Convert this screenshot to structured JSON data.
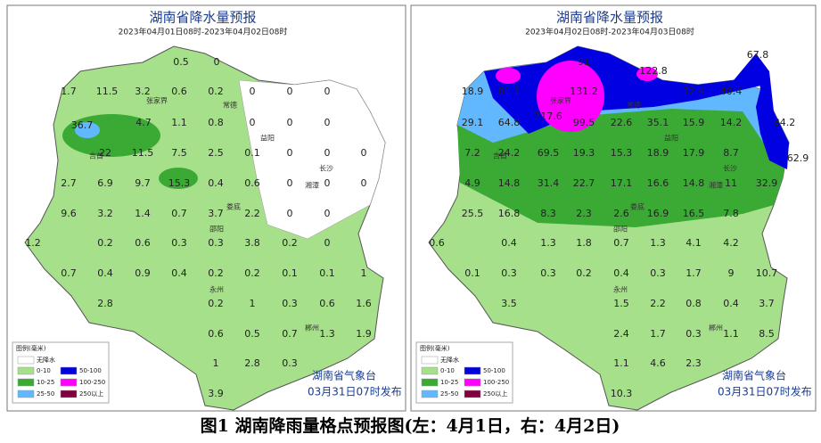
{
  "maps": [
    {
      "title": "湖南省降水量预报",
      "subtitle": "2023年04月01日08时-2023年04月02日08时",
      "legend_title": "图例(毫米)",
      "legend": [
        {
          "label": "无降水",
          "color": "#ffffff"
        },
        {
          "label": "0-10",
          "color": "#a6e08a"
        },
        {
          "label": "10-25",
          "color": "#3aaa35"
        },
        {
          "label": "25-50",
          "color": "#61b8ff"
        },
        {
          "label": "50-100",
          "color": "#0000e0"
        },
        {
          "label": "100-250",
          "color": "#ff00ff"
        },
        {
          "label": "250以上",
          "color": "#800040"
        }
      ],
      "issuer": "湖南省气象台",
      "issued": "03月31日07时发布",
      "cities": [
        "张家界",
        "常德",
        "益阳",
        "吉首",
        "长沙",
        "湘潭",
        "娄底",
        "邵阳",
        "永州",
        "郴州"
      ],
      "values": [
        "0.5",
        "0",
        "1.7",
        "11.5",
        "3.2",
        "0.6",
        "0.2",
        "0",
        "0",
        "0",
        "36.7",
        "4.7",
        "1.1",
        "0.8",
        "0",
        "0",
        "0",
        "22",
        "11.5",
        "7.5",
        "2.5",
        "0.1",
        "0",
        "0",
        "0",
        "2.7",
        "6.9",
        "9.7",
        "15.3",
        "0.4",
        "0.6",
        "0",
        "0",
        "0",
        "9.6",
        "3.2",
        "1.4",
        "0.7",
        "3.7",
        "2.2",
        "0",
        "0",
        "1.2",
        "0.2",
        "0.6",
        "0.3",
        "0.3",
        "3.8",
        "0.2",
        "0",
        "0.7",
        "0.4",
        "0.9",
        "0.4",
        "0.2",
        "0.2",
        "0.1",
        "0.1",
        "1",
        "2.8",
        "0.2",
        "1",
        "0.3",
        "0.6",
        "1.6",
        "0.6",
        "0.5",
        "0.7",
        "1.3",
        "1.9",
        "1",
        "2.8",
        "0.3",
        "3.9"
      ]
    },
    {
      "title": "湖南省降水量预报",
      "subtitle": "2023年04月02日08时-2023年04月03日08时",
      "legend_title": "图例(毫米)",
      "legend": [
        {
          "label": "无降水",
          "color": "#ffffff"
        },
        {
          "label": "0-10",
          "color": "#a6e08a"
        },
        {
          "label": "10-25",
          "color": "#3aaa35"
        },
        {
          "label": "25-50",
          "color": "#61b8ff"
        },
        {
          "label": "50-100",
          "color": "#0000e0"
        },
        {
          "label": "100-250",
          "color": "#ff00ff"
        },
        {
          "label": "250以上",
          "color": "#800040"
        }
      ],
      "issuer": "湖南省气象台",
      "issued": "03月31日07时发布",
      "cities": [
        "张家界",
        "常德",
        "益阳",
        "吉首",
        "长沙",
        "湘潭",
        "娄底",
        "邵阳",
        "永州",
        "郴州"
      ],
      "values": [
        "91",
        "122.8",
        "67.8",
        "18.9",
        "81.1",
        "131.2",
        "32.4",
        "40.4",
        "29.1",
        "64.8",
        "217.6",
        "99.5",
        "22.6",
        "35.1",
        "15.9",
        "14.2",
        "84.2",
        "7.2",
        "24.2",
        "69.5",
        "19.3",
        "15.3",
        "18.9",
        "17.9",
        "8.7",
        "62.9",
        "4.9",
        "14.8",
        "31.4",
        "22.7",
        "17.1",
        "16.6",
        "14.8",
        "11",
        "32.9",
        "25.5",
        "16.8",
        "8.3",
        "2.3",
        "2.6",
        "16.9",
        "16.5",
        "7.8",
        "0.6",
        "0.4",
        "1.3",
        "1.8",
        "0.7",
        "1.3",
        "4.1",
        "4.2",
        "0.1",
        "0.3",
        "0.3",
        "0.2",
        "0.4",
        "0.3",
        "1.7",
        "9",
        "10.7",
        "3.5",
        "1.5",
        "2.2",
        "0.8",
        "0.4",
        "3.7",
        "2.4",
        "1.7",
        "0.3",
        "1.1",
        "8.5",
        "1.1",
        "4.6",
        "2.3",
        "10.3"
      ]
    }
  ],
  "caption": "图1  湖南降雨量格点预报图(左：4月1日，右：4月2日)"
}
